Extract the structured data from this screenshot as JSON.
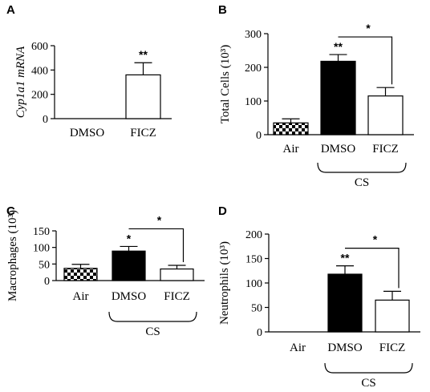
{
  "chart_data": [
    {
      "panel": "A",
      "type": "bar",
      "ylabel": "Cyp1a1 mRNA",
      "ylim": [
        0,
        600
      ],
      "yticks": [
        "0",
        "200",
        "400",
        "600"
      ],
      "categories": [
        "DMSO",
        "FICZ"
      ],
      "values": [
        0,
        360
      ],
      "errors": [
        0,
        100
      ],
      "fills": [
        "white",
        "white"
      ],
      "bar_labels": [
        "",
        "**"
      ],
      "group_label": "",
      "comparison": null
    },
    {
      "panel": "B",
      "type": "bar",
      "ylabel": "Total Cells (10³)",
      "ylim": [
        0,
        300
      ],
      "yticks": [
        "0",
        "100",
        "200",
        "300"
      ],
      "categories": [
        "Air",
        "DMSO",
        "FICZ"
      ],
      "values": [
        35,
        218,
        115
      ],
      "errors": [
        12,
        20,
        25
      ],
      "fills": [
        "checker",
        "black",
        "white"
      ],
      "bar_labels": [
        "",
        "**",
        ""
      ],
      "group_label": "CS",
      "comparison": {
        "from": 1,
        "to": 2,
        "label": "*"
      }
    },
    {
      "panel": "C",
      "type": "bar",
      "ylabel": "Macrophages (10³)",
      "ylim": [
        0,
        150
      ],
      "yticks": [
        "0",
        "50",
        "100",
        "150"
      ],
      "categories": [
        "Air",
        "DMSO",
        "FICZ"
      ],
      "values": [
        37,
        89,
        35
      ],
      "errors": [
        12,
        14,
        11
      ],
      "fills": [
        "checker",
        "black",
        "white"
      ],
      "bar_labels": [
        "",
        "*",
        ""
      ],
      "group_label": "CS",
      "comparison": {
        "from": 1,
        "to": 2,
        "label": "*"
      }
    },
    {
      "panel": "D",
      "type": "bar",
      "ylabel": "Neutrophils (10³)",
      "ylim": [
        0,
        200
      ],
      "yticks": [
        "0",
        "50",
        "100",
        "150",
        "200"
      ],
      "categories": [
        "Air",
        "DMSO",
        "FICZ"
      ],
      "values": [
        0,
        118,
        65
      ],
      "errors": [
        0,
        17,
        18
      ],
      "fills": [
        "white",
        "black",
        "white"
      ],
      "bar_labels": [
        "",
        "**",
        ""
      ],
      "group_label": "CS",
      "comparison": {
        "from": 1,
        "to": 2,
        "label": "*"
      }
    }
  ]
}
